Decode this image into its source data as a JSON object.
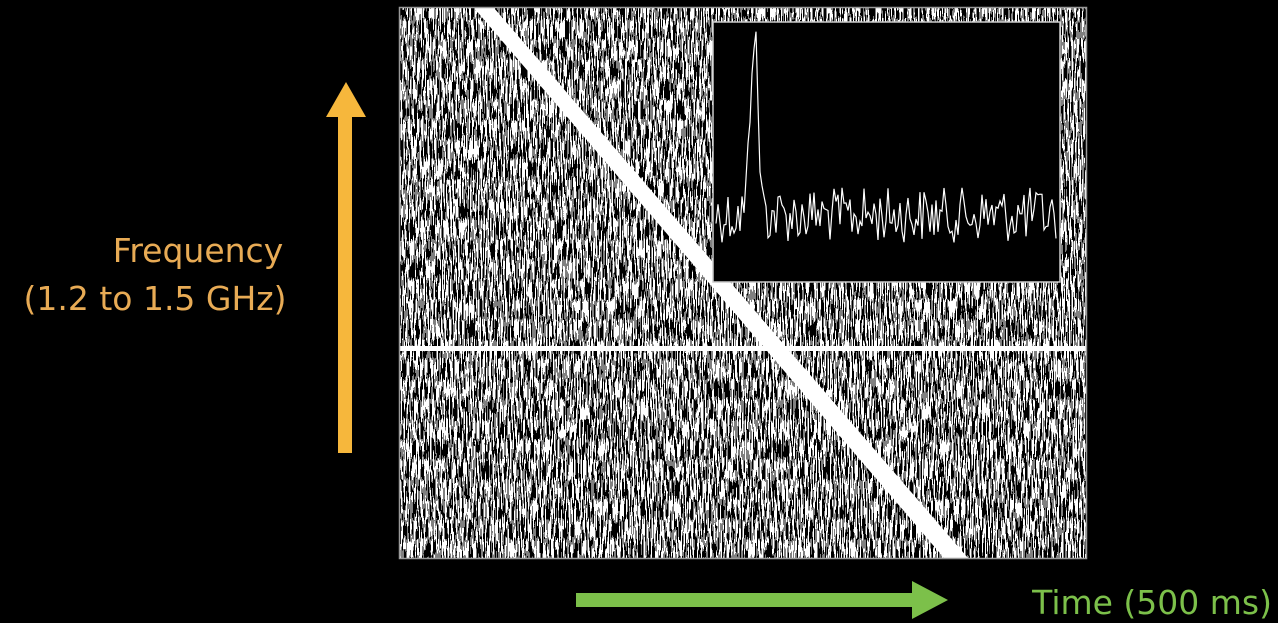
{
  "labels": {
    "frequency": "Frequency",
    "frequency_range": "(1.2 to 1.5 GHz)",
    "time": "Time (500 ms)"
  }
}
